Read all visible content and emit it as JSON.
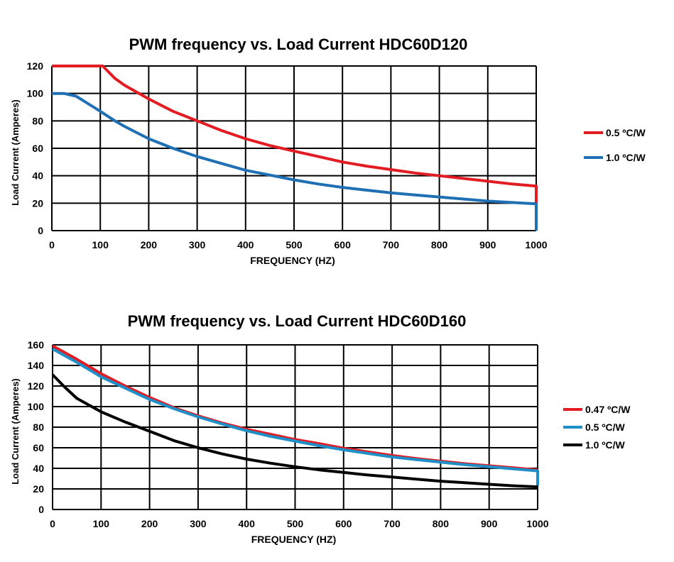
{
  "chart_data": [
    {
      "type": "line",
      "title": "PWM frequency  vs. Load Current HDC60D120",
      "xlabel": "FREQUENCY (HZ)",
      "ylabel": "Load Current (Amperes)",
      "xlim": [
        0,
        1000
      ],
      "ylim": [
        0,
        120
      ],
      "xticks": [
        0,
        100,
        200,
        300,
        400,
        500,
        600,
        700,
        800,
        900,
        1000
      ],
      "yticks": [
        0,
        20,
        40,
        60,
        80,
        100,
        120
      ],
      "grid": true,
      "legend_position": "right",
      "series": [
        {
          "name": "0.5 ºC/W",
          "color": "#e31b23",
          "points": [
            [
              0,
              120
            ],
            [
              105,
              120
            ],
            [
              130,
              111
            ],
            [
              150,
              106
            ],
            [
              200,
              96
            ],
            [
              250,
              87
            ],
            [
              300,
              80
            ],
            [
              350,
              73
            ],
            [
              400,
              67
            ],
            [
              450,
              62
            ],
            [
              500,
              58
            ],
            [
              550,
              54
            ],
            [
              600,
              50
            ],
            [
              650,
              47
            ],
            [
              700,
              44.5
            ],
            [
              750,
              42
            ],
            [
              800,
              40
            ],
            [
              850,
              38
            ],
            [
              900,
              36
            ],
            [
              950,
              34
            ],
            [
              1000,
              32.5
            ],
            [
              1000,
              20
            ]
          ]
        },
        {
          "name": "1.0 ºC/W",
          "color": "#1f6fb4",
          "points": [
            [
              0,
              100
            ],
            [
              25,
              100
            ],
            [
              50,
              98
            ],
            [
              100,
              87
            ],
            [
              130,
              80
            ],
            [
              150,
              76
            ],
            [
              200,
              67
            ],
            [
              250,
              60
            ],
            [
              300,
              54
            ],
            [
              350,
              49
            ],
            [
              400,
              44
            ],
            [
              450,
              40.5
            ],
            [
              500,
              37
            ],
            [
              550,
              34
            ],
            [
              600,
              31.5
            ],
            [
              650,
              29.5
            ],
            [
              700,
              27.5
            ],
            [
              750,
              26
            ],
            [
              800,
              24.5
            ],
            [
              850,
              23
            ],
            [
              900,
              21.5
            ],
            [
              950,
              20.5
            ],
            [
              1000,
              19.5
            ],
            [
              1000,
              0
            ]
          ]
        }
      ]
    },
    {
      "type": "line",
      "title": "PWM frequency  vs. Load Current HDC60D160",
      "xlabel": "FREQUENCY (HZ)",
      "ylabel": "Load Current (Amperes)",
      "xlim": [
        0,
        1000
      ],
      "ylim": [
        0,
        160
      ],
      "xticks": [
        0,
        100,
        200,
        300,
        400,
        500,
        600,
        700,
        800,
        900,
        1000
      ],
      "yticks": [
        0,
        20,
        40,
        60,
        80,
        100,
        120,
        140,
        160
      ],
      "grid": true,
      "legend_position": "right",
      "series": [
        {
          "name": "0.47 ºC/W",
          "color": "#e31b23",
          "points": [
            [
              0,
              159
            ],
            [
              50,
              146
            ],
            [
              100,
              132
            ],
            [
              150,
              120
            ],
            [
              200,
              109
            ],
            [
              250,
              99
            ],
            [
              300,
              91
            ],
            [
              350,
              84
            ],
            [
              400,
              78
            ],
            [
              450,
              73
            ],
            [
              500,
              68
            ],
            [
              550,
              64
            ],
            [
              600,
              59.5
            ],
            [
              650,
              56
            ],
            [
              700,
              52.5
            ],
            [
              750,
              49.5
            ],
            [
              800,
              47
            ],
            [
              850,
              44.5
            ],
            [
              900,
              42.5
            ],
            [
              950,
              40.5
            ],
            [
              1000,
              38.5
            ]
          ]
        },
        {
          "name": "0.5 ºC/W",
          "color": "#1f8fc8",
          "points": [
            [
              0,
              156
            ],
            [
              50,
              143
            ],
            [
              100,
              129
            ],
            [
              150,
              118
            ],
            [
              200,
              107
            ],
            [
              250,
              98
            ],
            [
              300,
              90
            ],
            [
              350,
              83
            ],
            [
              400,
              76.5
            ],
            [
              450,
              71
            ],
            [
              500,
              66.5
            ],
            [
              550,
              62
            ],
            [
              600,
              58
            ],
            [
              650,
              54.5
            ],
            [
              700,
              51
            ],
            [
              750,
              48.5
            ],
            [
              800,
              46
            ],
            [
              850,
              43.5
            ],
            [
              900,
              41.5
            ],
            [
              950,
              39.5
            ],
            [
              1000,
              37.5
            ],
            [
              1000,
              23
            ]
          ]
        },
        {
          "name": "1.0 ºC/W",
          "color": "#000000",
          "points": [
            [
              0,
              131
            ],
            [
              25,
              119
            ],
            [
              50,
              108
            ],
            [
              100,
              95
            ],
            [
              150,
              85
            ],
            [
              200,
              76
            ],
            [
              250,
              67
            ],
            [
              300,
              60
            ],
            [
              350,
              54
            ],
            [
              400,
              49
            ],
            [
              450,
              45
            ],
            [
              500,
              41.5
            ],
            [
              550,
              38.5
            ],
            [
              600,
              36
            ],
            [
              650,
              33.5
            ],
            [
              700,
              31.5
            ],
            [
              750,
              29.5
            ],
            [
              800,
              27.5
            ],
            [
              850,
              26
            ],
            [
              900,
              24.5
            ],
            [
              950,
              23
            ],
            [
              1000,
              22
            ]
          ]
        }
      ]
    }
  ]
}
